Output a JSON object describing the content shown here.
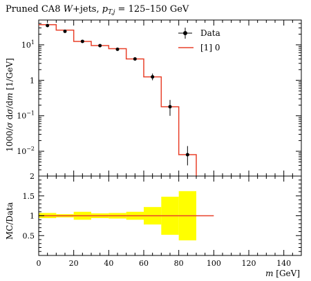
{
  "chart_data": [
    {
      "type": "line",
      "panel": "main",
      "title": "Pruned CA8 W+jets, p_T,j = 125–150 GeV",
      "title_parts": {
        "prefix": "Pruned CA8 ",
        "w": "W",
        "suffix1": "+jets, ",
        "pt_p": "p",
        "pt_sub": "T,j",
        "range": " = 125–150 GeV"
      },
      "ylabel": "1000/σ dσ/dm [1/GeV]",
      "ylabel_parts": {
        "a": "1000/",
        "sigma": "σ",
        "b": " d",
        "c": "σ",
        "d": "/d",
        "m": "m",
        "e": " [1/GeV]"
      },
      "y_scale": "log",
      "ylim": [
        0.002,
        50
      ],
      "xlim": [
        0,
        150
      ],
      "y_ticks": [
        {
          "v": 10,
          "label": "10",
          "exp": "1"
        },
        {
          "v": 1,
          "label": "1",
          "exp": ""
        },
        {
          "v": 0.1,
          "label": "10",
          "exp": "−1"
        },
        {
          "v": 0.01,
          "label": "10",
          "exp": "−2"
        }
      ],
      "y_bottom_label": "2",
      "legend": {
        "position": "top-right",
        "entries": [
          "Data",
          "[1] 0"
        ]
      },
      "series": [
        {
          "name": "Data",
          "style": "points",
          "color": "#000000",
          "x": [
            5,
            15,
            25,
            35,
            45,
            55,
            65,
            75,
            85
          ],
          "y": [
            35,
            24,
            12.5,
            9.5,
            7.5,
            4.0,
            1.25,
            0.18,
            0.008
          ],
          "yerr_low": [
            0,
            0,
            0,
            0,
            0,
            0,
            0.25,
            0.08,
            0.004
          ],
          "yerr_high": [
            0,
            0,
            0,
            0,
            0,
            0,
            0.3,
            0.1,
            0.006
          ]
        },
        {
          "name": "[1] 0",
          "style": "step",
          "color": "#e8402a",
          "bin_edges": [
            0,
            10,
            20,
            30,
            40,
            50,
            60,
            70,
            80,
            90
          ],
          "values": [
            37,
            26,
            12.5,
            9.5,
            7.8,
            4.0,
            1.25,
            0.18,
            0.008
          ]
        }
      ]
    },
    {
      "type": "area",
      "panel": "ratio",
      "ylabel": "MC/Data",
      "xlabel": "m [GeV]",
      "xlabel_parts": {
        "m": "m",
        "unit": " [GeV]"
      },
      "ylim": [
        0,
        2
      ],
      "xlim": [
        0,
        150
      ],
      "y_ticks": [
        {
          "v": 0.5,
          "label": "0.5"
        },
        {
          "v": 1,
          "label": "1"
        },
        {
          "v": 1.5,
          "label": "1.5"
        }
      ],
      "x_ticks": [
        0,
        20,
        40,
        60,
        80,
        100,
        120,
        140
      ],
      "band_color": "#ffff00",
      "bin_edges": [
        0,
        10,
        20,
        30,
        40,
        50,
        60,
        70,
        80,
        90
      ],
      "band_low": [
        0.94,
        0.96,
        0.9,
        0.94,
        0.93,
        0.9,
        0.78,
        0.52,
        0.38
      ],
      "band_high": [
        1.07,
        1.04,
        1.1,
        1.06,
        1.07,
        1.1,
        1.22,
        1.48,
        1.62
      ],
      "ratio_line": {
        "color": "#e8402a",
        "x": [
          0,
          100
        ],
        "y": [
          1,
          1
        ]
      }
    }
  ]
}
